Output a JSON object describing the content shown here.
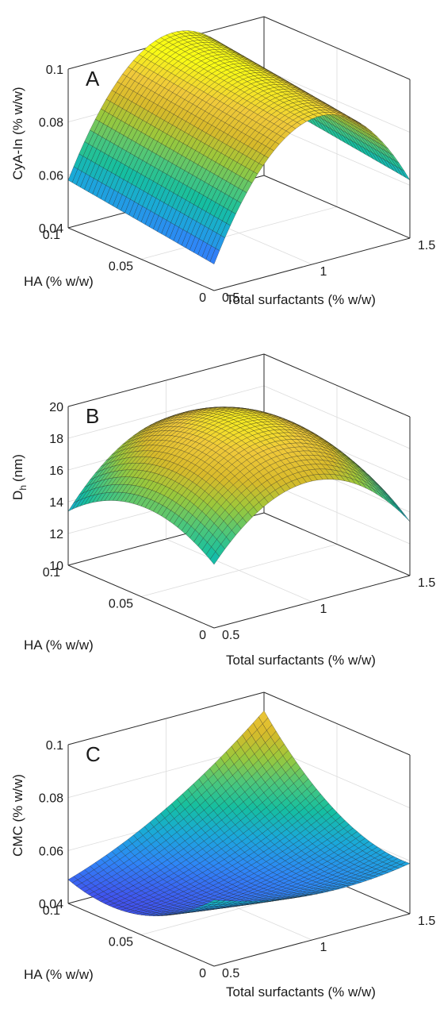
{
  "colormap": "parula",
  "colormap_stops": [
    "#3e26a8",
    "#4055f0",
    "#2e87f7",
    "#1aa9d9",
    "#15bfa0",
    "#4ec77a",
    "#9bc83b",
    "#d8ba2a",
    "#f0c93a",
    "#f9fb15"
  ],
  "chart_data": [
    {
      "type": "surface",
      "panel_label": "A",
      "xlabel": "Total surfactants (% w/w)",
      "ylabel": "HA (% w/w)",
      "zlabel": "CyA-In (% w/w)",
      "xlim": [
        0.5,
        1.5
      ],
      "ylim": [
        0,
        0.1
      ],
      "zlim": [
        0.04,
        0.1
      ],
      "xticks": [
        "0.5",
        "1",
        "1.5"
      ],
      "yticks": [
        "0",
        "0.05",
        "0.1"
      ],
      "zticks": [
        "0.04",
        "0.06",
        "0.08",
        "0.1"
      ],
      "grid": true,
      "model": {
        "const": 0.099,
        "x": 0.006,
        "y": 0.004,
        "xx": -0.039,
        "yy": 0.0,
        "xy": 0.0
      },
      "sample_values": {
        "x_0.5_y_0": 0.04,
        "x_0.5_y_0.1": 0.048,
        "x_1_y_0": 0.096,
        "x_1.5_y_0": 0.091,
        "x_1.5_y_0.1": 0.099
      }
    },
    {
      "type": "surface",
      "panel_label": "B",
      "xlabel": "Total surfactants (% w/w)",
      "ylabel": "HA (% w/w)",
      "zlabel": "D",
      "zlabel_sub": "h",
      "zlabel_unit": "(nm)",
      "xlim": [
        0.5,
        1.5
      ],
      "ylim": [
        0,
        0.1
      ],
      "zlim": [
        10,
        20
      ],
      "xticks": [
        "0.5",
        "1",
        "1.5"
      ],
      "yticks": [
        "0",
        "0.05",
        "0.1"
      ],
      "zticks": [
        "10",
        "12",
        "14",
        "16",
        "18",
        "20"
      ],
      "grid": true,
      "model": {
        "const": 19.6,
        "x": 0.0,
        "y": 0.0,
        "xx": -3.9,
        "yy": -2.0,
        "xy": 0.3
      },
      "sample_values": {
        "x_0.5_y_0": 13.0,
        "x_0.5_y_0.1": 13.6,
        "x_1_y_0.05": 19.6,
        "x_1.5_y_0": 13.4,
        "x_1.5_y_0.1": 12.6
      }
    },
    {
      "type": "surface",
      "panel_label": "C",
      "xlabel": "Total surfactants (% w/w)",
      "ylabel": "HA (% w/w)",
      "zlabel": "CMC (% w/w)",
      "xlim": [
        0.5,
        1.5
      ],
      "ylim": [
        0,
        0.1
      ],
      "zlim": [
        0.04,
        0.1
      ],
      "xticks": [
        "0.5",
        "1",
        "1.5"
      ],
      "yticks": [
        "0",
        "0.05",
        "0.1"
      ],
      "zticks": [
        "0.04",
        "0.06",
        "0.08",
        "0.1"
      ],
      "grid": true,
      "model": {
        "const": 0.052,
        "x": 0.0095,
        "y": 0.0045,
        "xx": 0.005,
        "yy": 0.0095,
        "xy": 0.0125
      },
      "sample_values": {
        "x_0.5_y_0": 0.047,
        "x_0.5_y_0.1": 0.044,
        "x_1.5_y_0": 0.04,
        "x_1.5_y_0.1": 0.103
      }
    }
  ]
}
